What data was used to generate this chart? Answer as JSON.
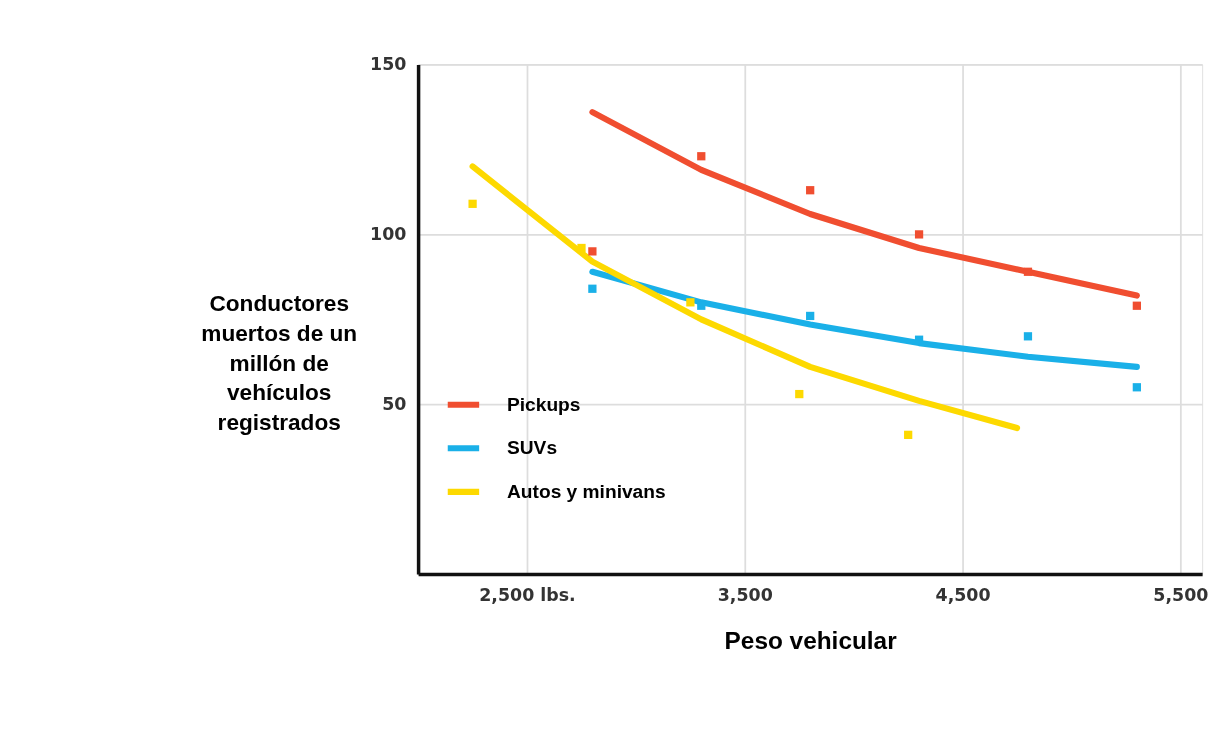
{
  "chart_data": {
    "type": "line",
    "xlabel": "Peso vehicular",
    "ylabel": "Conductores muertos de un millón de vehículos registrados",
    "xlim": [
      2000,
      5600
    ],
    "xticks": [
      {
        "value": 2500,
        "label": "2,500 lbs."
      },
      {
        "value": 3500,
        "label": "3,500"
      },
      {
        "value": 4500,
        "label": "4,500"
      },
      {
        "value": 5500,
        "label": "5,500"
      }
    ],
    "ylim": [
      0,
      150
    ],
    "yticks": [
      50,
      100,
      150
    ],
    "grid": true,
    "legend": "left",
    "series": [
      {
        "name": "Pickups",
        "color": "#f04e30",
        "x": [
          2800,
          3300,
          3800,
          4300,
          4800,
          5300
        ],
        "values": [
          136,
          119,
          106,
          96,
          89,
          82
        ]
      },
      {
        "name": "SUVs",
        "color": "#1ab0e8",
        "x": [
          2800,
          3300,
          3800,
          4300,
          4800,
          5300
        ],
        "values": [
          89,
          80,
          73.5,
          68,
          64,
          61
        ]
      },
      {
        "name": "Autos y minivans",
        "color": "#fdd900",
        "x": [
          2250,
          2800,
          3300,
          3800,
          4300,
          4750
        ],
        "values": [
          120,
          92,
          75,
          61,
          51,
          43
        ]
      },
      {
        "color": "#f04e30",
        "type": "scatter",
        "marker": "square",
        "x": [
          2800,
          3300,
          3800,
          4300,
          4800,
          5300
        ],
        "values": [
          95,
          123,
          113,
          100,
          89,
          79
        ]
      },
      {
        "color": "#1ab0e8",
        "type": "scatter",
        "marker": "square",
        "x": [
          2800,
          3300,
          3800,
          4300,
          4800,
          5300
        ],
        "values": [
          84,
          79,
          76,
          69,
          70,
          55
        ]
      },
      {
        "color": "#fdd900",
        "type": "scatter",
        "marker": "square",
        "x": [
          2250,
          2750,
          3250,
          3750,
          4250
        ],
        "values": [
          109,
          96,
          80,
          53,
          41
        ]
      }
    ]
  }
}
